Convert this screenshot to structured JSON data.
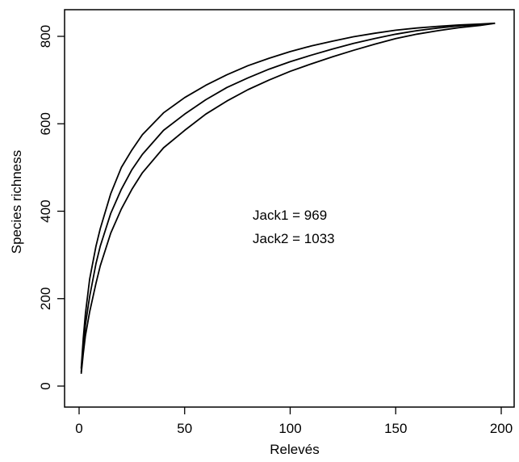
{
  "chart_data": {
    "type": "line",
    "title": "",
    "xlabel": "Relevés",
    "ylabel": "Species richness",
    "xlim": [
      0,
      200
    ],
    "ylim": [
      0,
      830
    ],
    "xticks": [
      0,
      50,
      100,
      150,
      200
    ],
    "yticks": [
      0,
      200,
      400,
      600,
      800
    ],
    "grid": false,
    "legend": "none",
    "line_color": "#000000",
    "annotations": [
      "Jack1 = 969",
      "Jack2 = 1033"
    ],
    "series": [
      {
        "x": [
          1,
          2,
          3,
          5,
          8,
          10,
          15,
          20,
          25,
          30,
          40,
          50,
          60,
          70,
          80,
          90,
          100,
          110,
          120,
          130,
          140,
          150,
          160,
          170,
          180,
          190,
          197
        ],
        "y": [
          40,
          110,
          165,
          245,
          320,
          360,
          440,
          500,
          540,
          575,
          625,
          660,
          688,
          712,
          733,
          750,
          765,
          778,
          789,
          799,
          807,
          814,
          819,
          823,
          826,
          828,
          830
        ]
      },
      {
        "x": [
          1,
          2,
          3,
          5,
          8,
          10,
          15,
          20,
          25,
          30,
          40,
          50,
          60,
          70,
          80,
          90,
          100,
          110,
          120,
          130,
          140,
          150,
          160,
          170,
          180,
          190,
          197
        ],
        "y": [
          32,
          90,
          140,
          205,
          280,
          320,
          395,
          450,
          495,
          530,
          585,
          622,
          655,
          683,
          705,
          725,
          742,
          757,
          771,
          784,
          795,
          805,
          813,
          819,
          824,
          827,
          830
        ]
      },
      {
        "x": [
          1,
          2,
          3,
          5,
          8,
          10,
          15,
          20,
          25,
          30,
          40,
          50,
          60,
          70,
          80,
          90,
          100,
          110,
          120,
          130,
          140,
          150,
          160,
          170,
          180,
          190,
          197
        ],
        "y": [
          28,
          75,
          115,
          170,
          235,
          275,
          350,
          405,
          450,
          488,
          545,
          585,
          622,
          652,
          678,
          700,
          720,
          737,
          753,
          768,
          782,
          795,
          805,
          813,
          820,
          825,
          830
        ]
      }
    ]
  }
}
